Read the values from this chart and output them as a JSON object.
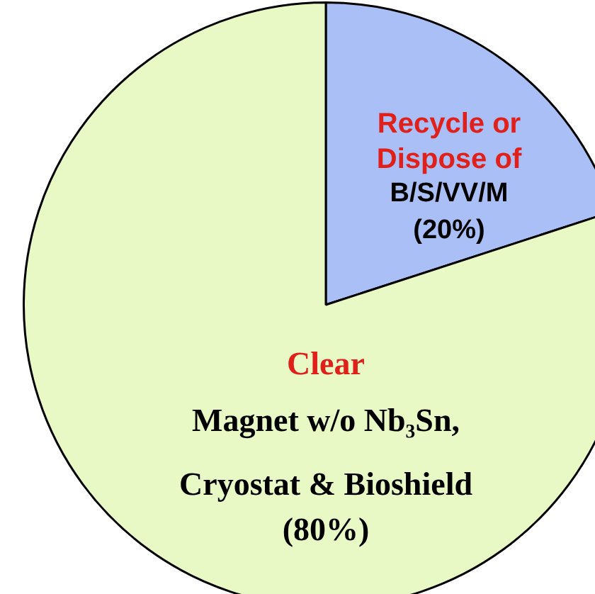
{
  "chart_data": {
    "type": "pie",
    "categories": [
      "Recycle or\nDispose of\nB/S/VV/M",
      "Clear\nMagnet w/o Nb₃Sn,\nCryostat & Bioshield"
    ],
    "values": [
      20,
      80
    ],
    "colors": [
      "#aabff5",
      "#e9f9c6"
    ],
    "value_labels": [
      "(20%)",
      "(80%)"
    ],
    "legend": false
  }
}
